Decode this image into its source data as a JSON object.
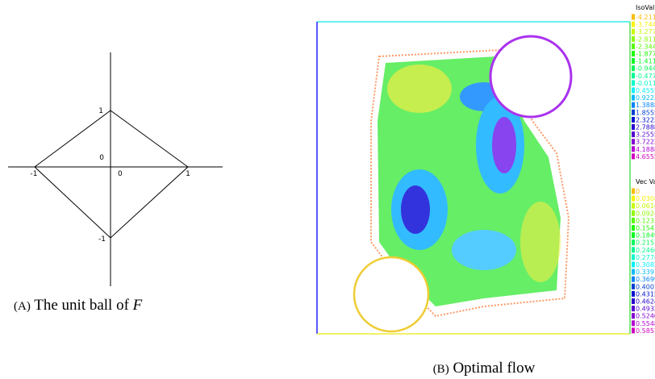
{
  "figure_a": {
    "ticks": {
      "y_top": "1",
      "origin_left": "0",
      "origin_below": "0",
      "x_right": "1",
      "x_left": "-1",
      "y_bottom": "-1"
    },
    "caption": {
      "tag": "(A)",
      "text": "The unit ball of",
      "symbol": "F"
    }
  },
  "figure_b": {
    "iso_title": "IsoValue",
    "iso_values": [
      "-4.21111",
      "-3.74444",
      "-3.27778",
      "-2.81111",
      "-2.34444",
      "-1.87778",
      "-1.41111",
      "-0.944444",
      "-0.477778",
      "-0.0111111",
      "0.455556",
      "0.922222",
      "1.38889",
      "1.85556",
      "2.32222",
      "2.78889",
      "3.25556",
      "3.72222",
      "4.18889",
      "4.65556"
    ],
    "vec_title": "Vec Value",
    "vec_values": [
      "0",
      "0.0308395",
      "0.061679",
      "0.0924813",
      "0.123309",
      "0.154137",
      "0.184964",
      "0.215791",
      "0.246619",
      "0.277446",
      "0.308273",
      "0.3391",
      "0.369928",
      "0.400755",
      "0.431582",
      "0.46241",
      "0.493237",
      "0.524064",
      "0.554892",
      "0.585719"
    ],
    "caption": {
      "tag": "(B)",
      "text": "Optimal flow"
    }
  }
}
